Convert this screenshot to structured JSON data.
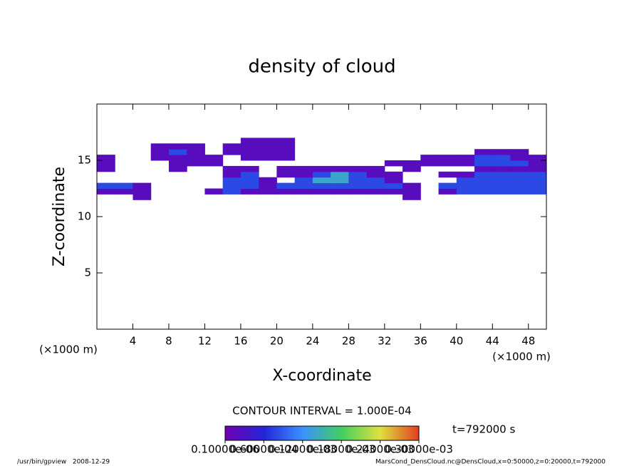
{
  "chart_data": {
    "type": "contour",
    "title": "density of cloud",
    "x_label": "X-coordinate",
    "y_label": "Z-coordinate",
    "x_unit": "(×1000 m)",
    "y_unit": "(×1000 m)",
    "xlim": [
      0,
      50
    ],
    "ylim": [
      0,
      20
    ],
    "xticks": [
      4,
      8,
      12,
      16,
      20,
      24,
      28,
      32,
      36,
      40,
      44,
      48
    ],
    "yticks": [
      5,
      10,
      15
    ],
    "x": [
      1,
      3,
      5,
      7,
      9,
      11,
      13,
      15,
      17,
      19,
      21,
      23,
      25,
      27,
      29,
      31,
      33,
      35,
      37,
      39,
      41,
      43,
      45,
      47,
      49
    ],
    "z": [
      11.75,
      12.25,
      12.75,
      13.25,
      13.75,
      14.25,
      14.75,
      15.25,
      15.75,
      16.25,
      16.75
    ],
    "values": [
      [
        0,
        0,
        2e-05,
        0,
        0,
        0,
        0,
        0,
        0,
        0,
        0,
        0,
        0,
        0,
        0,
        0,
        0,
        2e-05,
        0,
        0,
        0,
        0,
        0,
        0,
        0
      ],
      [
        2e-05,
        2e-05,
        2e-05,
        0,
        0,
        0,
        2e-05,
        8e-05,
        2e-05,
        2e-05,
        2e-05,
        2e-05,
        2e-05,
        2e-05,
        2e-05,
        2e-05,
        2e-05,
        2e-05,
        0,
        2e-05,
        8e-05,
        8e-05,
        8e-05,
        8e-05,
        8e-05
      ],
      [
        8e-05,
        8e-05,
        2e-05,
        0,
        0,
        0,
        0,
        8e-05,
        8e-05,
        2e-05,
        8e-05,
        8e-05,
        8e-05,
        8e-05,
        8e-05,
        8e-05,
        8e-05,
        2e-05,
        0,
        8e-05,
        8e-05,
        8e-05,
        8e-05,
        8e-05,
        8e-05
      ],
      [
        0,
        0,
        0,
        0,
        0,
        0,
        0,
        8e-05,
        8e-05,
        2e-05,
        0,
        8e-05,
        0.00014,
        0.00014,
        8e-05,
        8e-05,
        2e-05,
        0,
        0,
        0,
        8e-05,
        8e-05,
        8e-05,
        8e-05,
        8e-05
      ],
      [
        0,
        0,
        0,
        0,
        0,
        0,
        0,
        2e-05,
        8e-05,
        0,
        2e-05,
        2e-05,
        8e-05,
        0.00014,
        8e-05,
        2e-05,
        2e-05,
        0,
        0,
        2e-05,
        2e-05,
        8e-05,
        8e-05,
        8e-05,
        8e-05
      ],
      [
        2e-05,
        0,
        0,
        0,
        2e-05,
        0,
        0,
        2e-05,
        2e-05,
        0,
        2e-05,
        2e-05,
        2e-05,
        2e-05,
        2e-05,
        2e-05,
        0,
        2e-05,
        0,
        0,
        0,
        2e-05,
        2e-05,
        2e-05,
        2e-05
      ],
      [
        2e-05,
        0,
        0,
        0,
        2e-05,
        2e-05,
        2e-05,
        0,
        0,
        0,
        0,
        0,
        0,
        0,
        0,
        0,
        2e-05,
        2e-05,
        2e-05,
        2e-05,
        2e-05,
        8e-05,
        8e-05,
        8e-05,
        2e-05
      ],
      [
        2e-05,
        0,
        0,
        2e-05,
        2e-05,
        2e-05,
        2e-05,
        0,
        2e-05,
        2e-05,
        2e-05,
        0,
        0,
        0,
        0,
        0,
        0,
        0,
        2e-05,
        2e-05,
        2e-05,
        8e-05,
        8e-05,
        2e-05,
        2e-05
      ],
      [
        0,
        0,
        0,
        2e-05,
        8e-05,
        2e-05,
        0,
        2e-05,
        2e-05,
        2e-05,
        2e-05,
        0,
        0,
        0,
        0,
        0,
        0,
        0,
        0,
        0,
        0,
        2e-05,
        2e-05,
        2e-05,
        0
      ],
      [
        0,
        0,
        0,
        2e-05,
        2e-05,
        2e-05,
        0,
        2e-05,
        2e-05,
        2e-05,
        2e-05,
        0,
        0,
        0,
        0,
        0,
        0,
        0,
        0,
        0,
        0,
        0,
        0,
        0,
        0
      ],
      [
        0,
        0,
        0,
        0,
        0,
        0,
        0,
        0,
        2e-05,
        2e-05,
        2e-05,
        0,
        0,
        0,
        0,
        0,
        0,
        0,
        0,
        0,
        0,
        0,
        0,
        0,
        0
      ]
    ],
    "colormap": [
      "#7000b0",
      "#2424d8",
      "#3c90ff",
      "#40d060",
      "#e0e040",
      "#e04020"
    ],
    "clim": [
      1e-07,
      0.0003
    ],
    "colorbar_ticks": [
      {
        "value": 1e-07,
        "label": "0.10000e-06"
      },
      {
        "value": 6e-05,
        "label": "0.60000e-04"
      },
      {
        "value": 0.00012,
        "label": "0.12000e-03"
      },
      {
        "value": 0.00018,
        "label": "0.18000e-03"
      },
      {
        "value": 0.00024,
        "label": "0.24000e-03"
      },
      {
        "value": 0.0003,
        "label": "0.30000e-03"
      }
    ],
    "contour_interval": "CONTOUR INTERVAL = 1.000E-04",
    "time_label": "t=792000 s",
    "footer_left": "/usr/bin/gpview   2008-12-29",
    "footer_right": "MarsCond_DensCloud.nc@DensCloud,x=0:50000,z=0:20000,t=792000"
  }
}
